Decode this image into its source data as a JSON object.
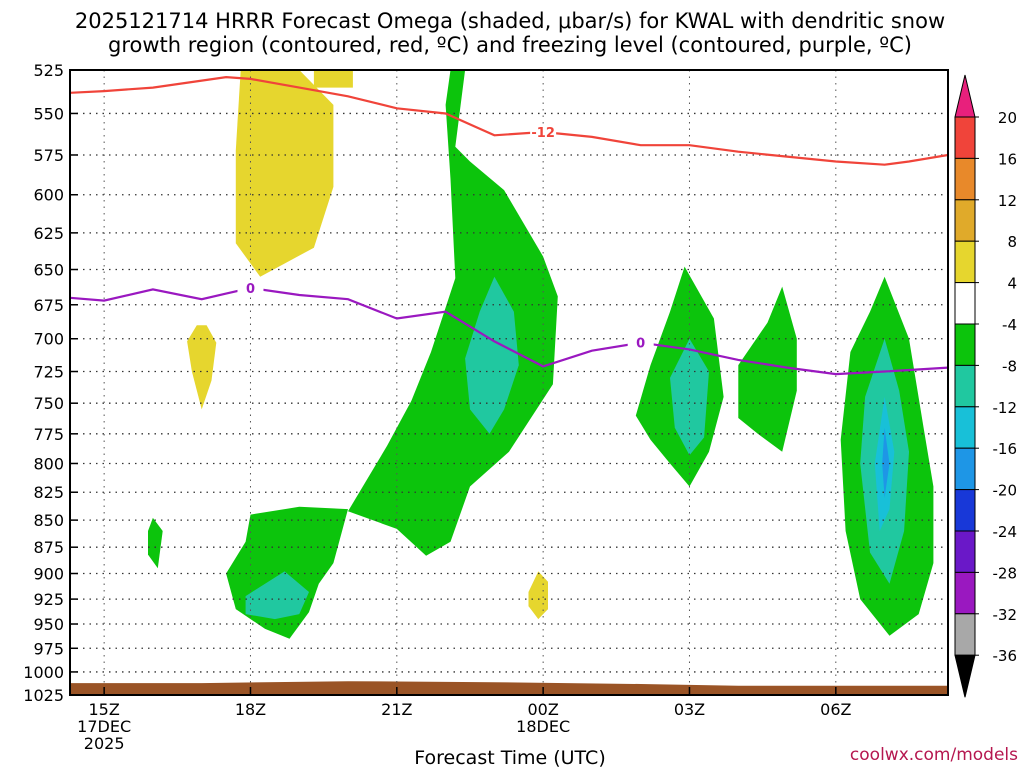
{
  "chart_data": {
    "type": "time-height contour",
    "title_line1": "2025121714 HRRR Forecast Omega (shaded, μbar/s) for KWAL with dendritic snow",
    "title_line2": "growth region (contoured, red, ºC) and freezing level (contoured, purple, ºC)",
    "xlabel": "Forecast Time (UTC)",
    "credit": "coolwx.com/models",
    "x_hours_range": [
      14.3,
      32.3
    ],
    "y_pressure_range": [
      1025,
      525
    ],
    "y_ticks": [
      525,
      550,
      575,
      600,
      625,
      650,
      675,
      700,
      725,
      750,
      775,
      800,
      825,
      850,
      875,
      900,
      925,
      950,
      975,
      1000,
      1025
    ],
    "x_ticks": [
      {
        "hour": 15,
        "lines": [
          "15Z",
          "17DEC",
          "2025"
        ]
      },
      {
        "hour": 18,
        "lines": [
          "18Z"
        ]
      },
      {
        "hour": 21,
        "lines": [
          "21Z"
        ]
      },
      {
        "hour": 24,
        "lines": [
          "00Z",
          "18DEC"
        ]
      },
      {
        "hour": 27,
        "lines": [
          "03Z"
        ]
      },
      {
        "hour": 30,
        "lines": [
          "06Z"
        ]
      }
    ],
    "colorbar": {
      "labels": [
        "20",
        "16",
        "12",
        "8",
        "4",
        "-4",
        "-8",
        "-12",
        "-16",
        "-20",
        "-24",
        "-28",
        "-32",
        "-36"
      ],
      "colors": [
        "#f0443a",
        "#e8892a",
        "#e0aa2a",
        "#e6d62e",
        "#ffffff",
        "#0cc40c",
        "#20c8a0",
        "#18c0d8",
        "#1e96e6",
        "#1838d8",
        "#6a18c8",
        "#9a18c0",
        "#a8a8a8"
      ],
      "top_arrow_color": "#e8207c",
      "bottom_arrow_color": "#000000"
    },
    "contour_dgz": {
      "label": "-12",
      "color": "#f0443a",
      "points": [
        [
          14.3,
          538
        ],
        [
          15,
          537
        ],
        [
          16,
          535
        ],
        [
          17,
          531
        ],
        [
          17.5,
          529
        ],
        [
          18,
          530
        ],
        [
          19,
          535
        ],
        [
          20,
          540
        ],
        [
          21,
          547
        ],
        [
          22,
          550
        ],
        [
          23,
          563
        ],
        [
          24,
          561
        ],
        [
          25,
          564
        ],
        [
          26,
          569
        ],
        [
          27,
          569
        ],
        [
          28,
          573
        ],
        [
          29,
          576
        ],
        [
          30,
          579
        ],
        [
          31,
          581
        ],
        [
          31.5,
          579
        ],
        [
          32.3,
          575
        ]
      ],
      "label_at": [
        24,
        561
      ]
    },
    "contour_freezing": {
      "label": "0",
      "color": "#9a18c0",
      "points": [
        [
          14.3,
          670
        ],
        [
          15,
          672
        ],
        [
          16,
          664
        ],
        [
          17,
          671
        ],
        [
          17.5,
          667
        ],
        [
          18,
          663
        ],
        [
          19,
          668
        ],
        [
          20,
          671
        ],
        [
          21,
          685
        ],
        [
          22,
          680
        ],
        [
          23,
          702
        ],
        [
          24,
          721
        ],
        [
          25,
          709
        ],
        [
          26,
          703
        ],
        [
          27,
          708
        ],
        [
          28,
          716
        ],
        [
          29,
          722
        ],
        [
          30,
          727
        ],
        [
          31,
          725
        ],
        [
          32.3,
          722
        ]
      ],
      "label_at": [
        26,
        703
      ],
      "label2_at": [
        18,
        663
      ]
    },
    "omega_regions": [
      {
        "level": 4,
        "pts": [
          [
            17.4,
            525
          ],
          [
            18.9,
            525
          ],
          [
            19.6,
            525
          ],
          [
            20.2,
            525
          ],
          [
            21.1,
            525
          ],
          [
            21.1,
            560
          ],
          [
            21.1,
            650
          ],
          [
            20.6,
            650
          ],
          [
            20.2,
            659
          ],
          [
            19.7,
            687
          ],
          [
            19,
            716
          ],
          [
            18.1,
            733
          ],
          [
            17.7,
            736
          ],
          [
            17.5,
            760
          ],
          [
            17.2,
            810
          ],
          [
            17,
            870
          ],
          [
            16.7,
            825
          ],
          [
            16.2,
            756
          ],
          [
            15.9,
            718
          ],
          [
            15.7,
            680
          ],
          [
            15.8,
            645
          ],
          [
            16,
            612
          ],
          [
            17,
            603
          ],
          [
            17.2,
            560
          ],
          [
            17.3,
            530
          ]
        ]
      },
      {
        "level": 8,
        "pts": [
          [
            17.8,
            525
          ],
          [
            19,
            525
          ],
          [
            19.7,
            545
          ],
          [
            19.7,
            595
          ],
          [
            19.3,
            635
          ],
          [
            18.2,
            655
          ],
          [
            17.7,
            632
          ],
          [
            17.7,
            572
          ]
        ]
      },
      {
        "level": 8,
        "pts": [
          [
            19.3,
            525
          ],
          [
            20.1,
            525
          ],
          [
            20.1,
            535
          ],
          [
            19.3,
            535
          ]
        ]
      },
      {
        "level": 8,
        "pts": [
          [
            17.1,
            690
          ],
          [
            17.3,
            703
          ],
          [
            17.2,
            732
          ],
          [
            17.0,
            755
          ],
          [
            16.8,
            725
          ],
          [
            16.7,
            702
          ],
          [
            16.9,
            690
          ]
        ]
      },
      {
        "level": 4,
        "pts": [
          [
            25.7,
            525
          ],
          [
            26.5,
            525
          ],
          [
            26.5,
            545
          ],
          [
            26.2,
            570
          ],
          [
            25.8,
            592
          ],
          [
            25.7,
            545
          ]
        ]
      },
      {
        "level": 4,
        "pts": [
          [
            22.1,
            918
          ],
          [
            23,
            891
          ],
          [
            23.8,
            862
          ],
          [
            24.3,
            855
          ],
          [
            24.7,
            872
          ],
          [
            25.1,
            923
          ],
          [
            24.8,
            972
          ],
          [
            24.3,
            982
          ],
          [
            23.5,
            960
          ],
          [
            22.5,
            942
          ],
          [
            22,
            930
          ]
        ]
      },
      {
        "level": 8,
        "pts": [
          [
            23.7,
            918
          ],
          [
            23.9,
            898
          ],
          [
            24.1,
            908
          ],
          [
            24.1,
            935
          ],
          [
            23.9,
            945
          ],
          [
            23.7,
            932
          ]
        ]
      },
      {
        "level": 4,
        "pts": [
          [
            25.6,
            965
          ],
          [
            26,
            955
          ],
          [
            26.2,
            980
          ],
          [
            26.0,
            992
          ],
          [
            25.7,
            980
          ]
        ]
      },
      {
        "level": -4,
        "pts": [
          [
            22.1,
            525
          ],
          [
            22.4,
            525
          ],
          [
            22.2,
            570
          ],
          [
            22.5,
            579
          ],
          [
            23.2,
            597
          ],
          [
            24,
            641
          ],
          [
            24.3,
            669
          ],
          [
            24.2,
            735
          ],
          [
            23.3,
            790
          ],
          [
            22.5,
            820
          ],
          [
            22.1,
            870
          ],
          [
            21.6,
            883
          ],
          [
            21.0,
            858
          ],
          [
            20.0,
            842
          ],
          [
            20.8,
            785
          ],
          [
            21.3,
            748
          ],
          [
            21.7,
            710
          ],
          [
            22.2,
            656
          ],
          [
            22.1,
            590
          ],
          [
            22.0,
            545
          ]
        ]
      },
      {
        "level": -8,
        "pts": [
          [
            23.0,
            655
          ],
          [
            23.4,
            680
          ],
          [
            23.5,
            720
          ],
          [
            23.2,
            755
          ],
          [
            22.9,
            775
          ],
          [
            22.5,
            755
          ],
          [
            22.4,
            715
          ],
          [
            22.7,
            680
          ]
        ]
      },
      {
        "level": -4,
        "pts": [
          [
            18.0,
            845
          ],
          [
            19.0,
            838
          ],
          [
            20.0,
            840
          ],
          [
            19.7,
            890
          ],
          [
            19.4,
            910
          ],
          [
            19.2,
            938
          ],
          [
            18.8,
            965
          ],
          [
            18.3,
            955
          ],
          [
            17.7,
            935
          ],
          [
            17.5,
            900
          ],
          [
            17.9,
            870
          ]
        ]
      },
      {
        "level": -8,
        "pts": [
          [
            17.9,
            922
          ],
          [
            18.7,
            898
          ],
          [
            19.2,
            918
          ],
          [
            19.0,
            940
          ],
          [
            18.5,
            945
          ],
          [
            17.9,
            940
          ]
        ]
      },
      {
        "level": -4,
        "pts": [
          [
            16.0,
            848
          ],
          [
            16.2,
            860
          ],
          [
            16.1,
            895
          ],
          [
            15.9,
            882
          ],
          [
            15.9,
            860
          ]
        ]
      },
      {
        "level": -4,
        "pts": [
          [
            26.9,
            648
          ],
          [
            27.5,
            685
          ],
          [
            27.7,
            745
          ],
          [
            27.4,
            790
          ],
          [
            27.0,
            820
          ],
          [
            26.6,
            800
          ],
          [
            26.2,
            780
          ],
          [
            25.9,
            760
          ],
          [
            26.2,
            720
          ],
          [
            26.6,
            680
          ]
        ]
      },
      {
        "level": -8,
        "pts": [
          [
            27.0,
            700
          ],
          [
            27.4,
            725
          ],
          [
            27.3,
            778
          ],
          [
            27.0,
            793
          ],
          [
            26.7,
            770
          ],
          [
            26.6,
            730
          ]
        ]
      },
      {
        "level": -4,
        "pts": [
          [
            28.9,
            662
          ],
          [
            29.2,
            700
          ],
          [
            29.2,
            740
          ],
          [
            28.9,
            790
          ],
          [
            28.4,
            775
          ],
          [
            28.0,
            762
          ],
          [
            28.0,
            720
          ],
          [
            28.6,
            688
          ]
        ]
      },
      {
        "level": -4,
        "pts": [
          [
            31.0,
            655
          ],
          [
            31.5,
            700
          ],
          [
            31.8,
            770
          ],
          [
            32.0,
            820
          ],
          [
            32.0,
            890
          ],
          [
            31.7,
            940
          ],
          [
            31.1,
            962
          ],
          [
            30.5,
            925
          ],
          [
            30.2,
            860
          ],
          [
            30.1,
            780
          ],
          [
            30.3,
            710
          ],
          [
            30.7,
            680
          ]
        ]
      },
      {
        "level": -8,
        "pts": [
          [
            31.0,
            700
          ],
          [
            31.3,
            740
          ],
          [
            31.5,
            790
          ],
          [
            31.4,
            860
          ],
          [
            31.1,
            910
          ],
          [
            30.7,
            880
          ],
          [
            30.5,
            800
          ],
          [
            30.6,
            745
          ]
        ]
      },
      {
        "level": -12,
        "pts": [
          [
            31.0,
            745
          ],
          [
            31.2,
            790
          ],
          [
            31.1,
            840
          ],
          [
            30.9,
            860
          ],
          [
            30.8,
            800
          ]
        ]
      },
      {
        "level": -16,
        "pts": [
          [
            31.0,
            770
          ],
          [
            31.1,
            800
          ],
          [
            31.0,
            830
          ],
          [
            30.95,
            800
          ]
        ]
      }
    ],
    "terrain_color": "#9a5426"
  }
}
